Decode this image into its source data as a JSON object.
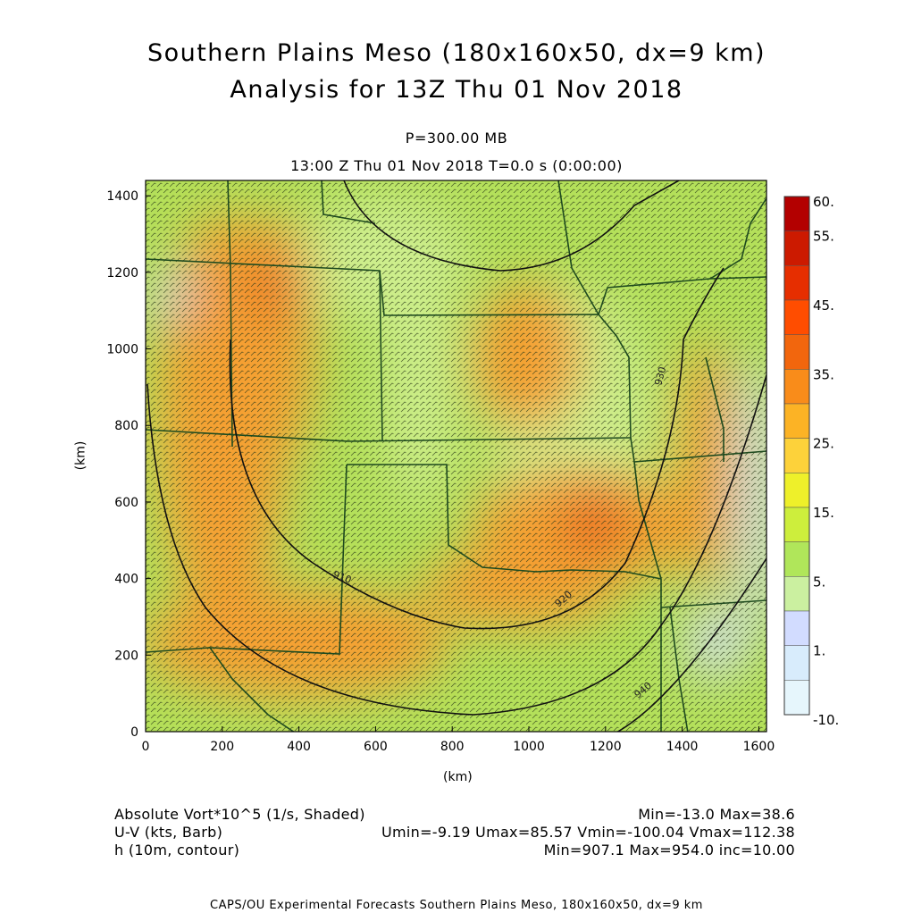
{
  "title_line1": "Southern Plains Meso (180x160x50, dx=9 km)",
  "title_line2": "Analysis for 13Z Thu 01 Nov 2018",
  "level_label": "P=300.00 MB",
  "time_label": "13:00 Z Thu 01 Nov 2018    T=0.0 s (0:00:00)",
  "x_axis": {
    "label": "(km)",
    "ticks": [
      "0",
      "200",
      "400",
      "600",
      "800",
      "1000",
      "1200",
      "1400",
      "1600"
    ],
    "range": [
      0,
      1620
    ]
  },
  "y_axis": {
    "label": "(km)",
    "ticks": [
      "0",
      "200",
      "400",
      "600",
      "800",
      "1000",
      "1200",
      "1400"
    ],
    "range": [
      0,
      1440
    ]
  },
  "colorbar": {
    "labels": [
      "60.",
      "55.",
      "45.",
      "35.",
      "25.",
      "15.",
      "5.",
      "1.",
      "-10."
    ],
    "colors": [
      "#b30000",
      "#cc1a00",
      "#e62e00",
      "#ff4d00",
      "#f2660d",
      "#f98c1a",
      "#fcb325",
      "#fdd23a",
      "#eef02a",
      "#cdee3c",
      "#b0e65a",
      "#cbf0a0",
      "#d2dcff",
      "#d8ecfc",
      "#e6f6fc"
    ]
  },
  "contour_labels": [
    "910",
    "920",
    "930",
    "940"
  ],
  "fields": {
    "vort_label": "Absolute Vort*10^5 (1/s, Shaded)",
    "vort_stats": "Min=-13.0 Max=38.6",
    "wind_label": "U-V (kts, Barb)",
    "wind_stats": "Umin=-9.19 Umax=85.57 Vmin=-100.04 Vmax=112.38",
    "height_label": "h (10m, contour)",
    "height_stats": "Min=907.1 Max=954.0 inc=10.00"
  },
  "footer": "CAPS/OU Experimental Forecasts   Southern Plains Meso, 180x160x50, dx=9 km",
  "colors": {
    "background_field": "#b4e05a",
    "light_field": "#cdee8c",
    "orange": "#f5a030",
    "red_orange": "#e86420",
    "blue_low": "#d4dcf8",
    "state_lines": "#1e4a1e",
    "contours": "#111111",
    "barbs": "#2a3a18"
  }
}
